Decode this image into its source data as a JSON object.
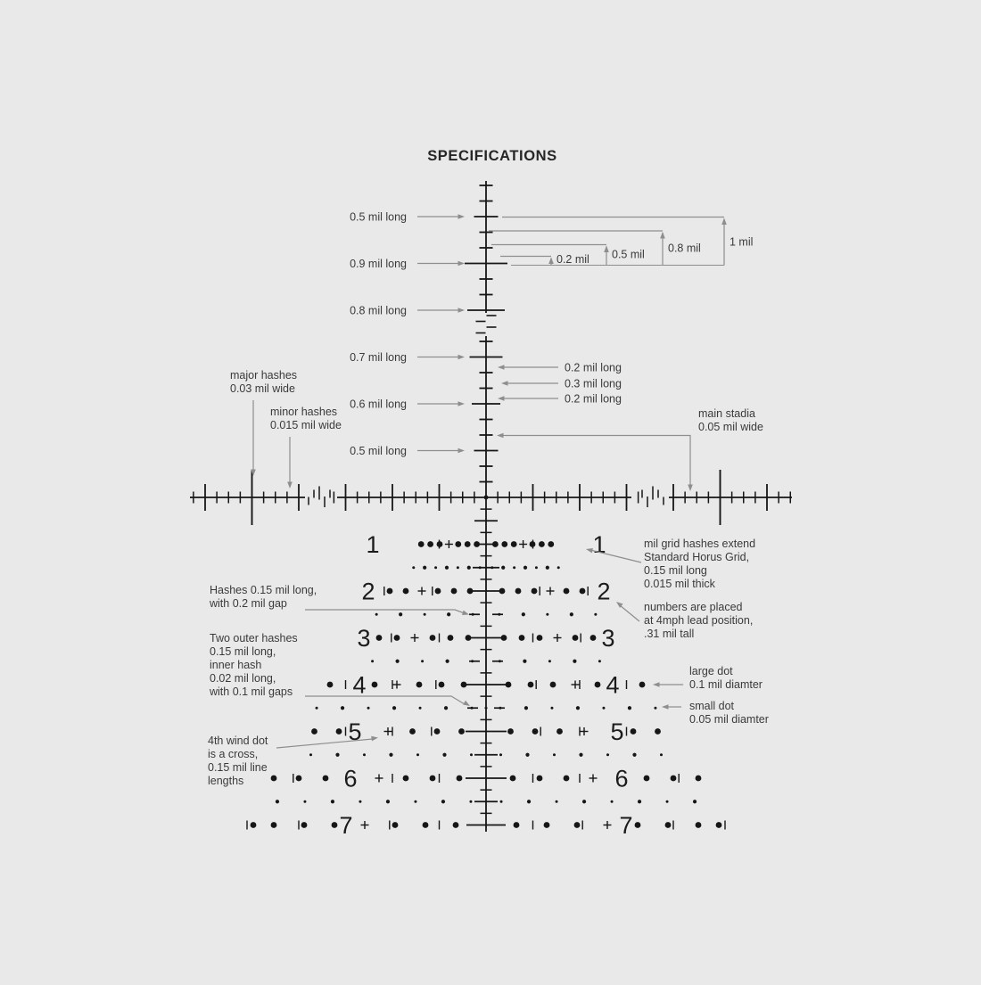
{
  "title": "SPECIFICATIONS",
  "colors": {
    "background": "#e9e9e9",
    "reticle": "#161616",
    "annotation_line": "#8e8e8e",
    "text": "#3a3a3a",
    "title_text": "#262626"
  },
  "left_hash_labels": [
    "0.5 mil long",
    "0.9 mil long",
    "0.8 mil long",
    "0.7 mil long",
    "0.6 mil long",
    "0.5 mil long"
  ],
  "bracket_labels": [
    "0.2 mil",
    "0.5 mil",
    "0.8 mil",
    "1 mil"
  ],
  "right_hash_labels": [
    "0.2 mil long",
    "0.3 mil long",
    "0.2 mil long"
  ],
  "row_numbers": [
    "1",
    "2",
    "3",
    "4",
    "5",
    "6",
    "7"
  ],
  "annotations": {
    "major_hashes": [
      "major hashes",
      "0.03 mil wide"
    ],
    "minor_hashes": [
      "minor hashes",
      "0.015 mil wide"
    ],
    "main_stadia": [
      "main stadia",
      "0.05 mil wide"
    ],
    "mil_grid": [
      "mil grid hashes extend",
      "Standard Horus Grid,",
      "0.15 mil long",
      "0.015 mil thick"
    ],
    "numbers_placed": [
      "numbers are placed",
      "at 4mph lead position,",
      ".31 mil tall"
    ],
    "hashes_gap": [
      "Hashes 0.15 mil long,",
      "with 0.2 mil gap"
    ],
    "two_outer": [
      "Two outer hashes",
      "0.15 mil long,",
      "inner hash",
      "0.02 mil long,",
      "with 0.1 mil gaps"
    ],
    "wind_dot_cross": [
      "4th wind dot",
      "is a cross,",
      "0.15 mil line",
      "lengths"
    ],
    "large_dot": [
      "large dot",
      "0.1 mil diamter"
    ],
    "small_dot": [
      "small dot",
      "0.05 mil diamter"
    ]
  }
}
